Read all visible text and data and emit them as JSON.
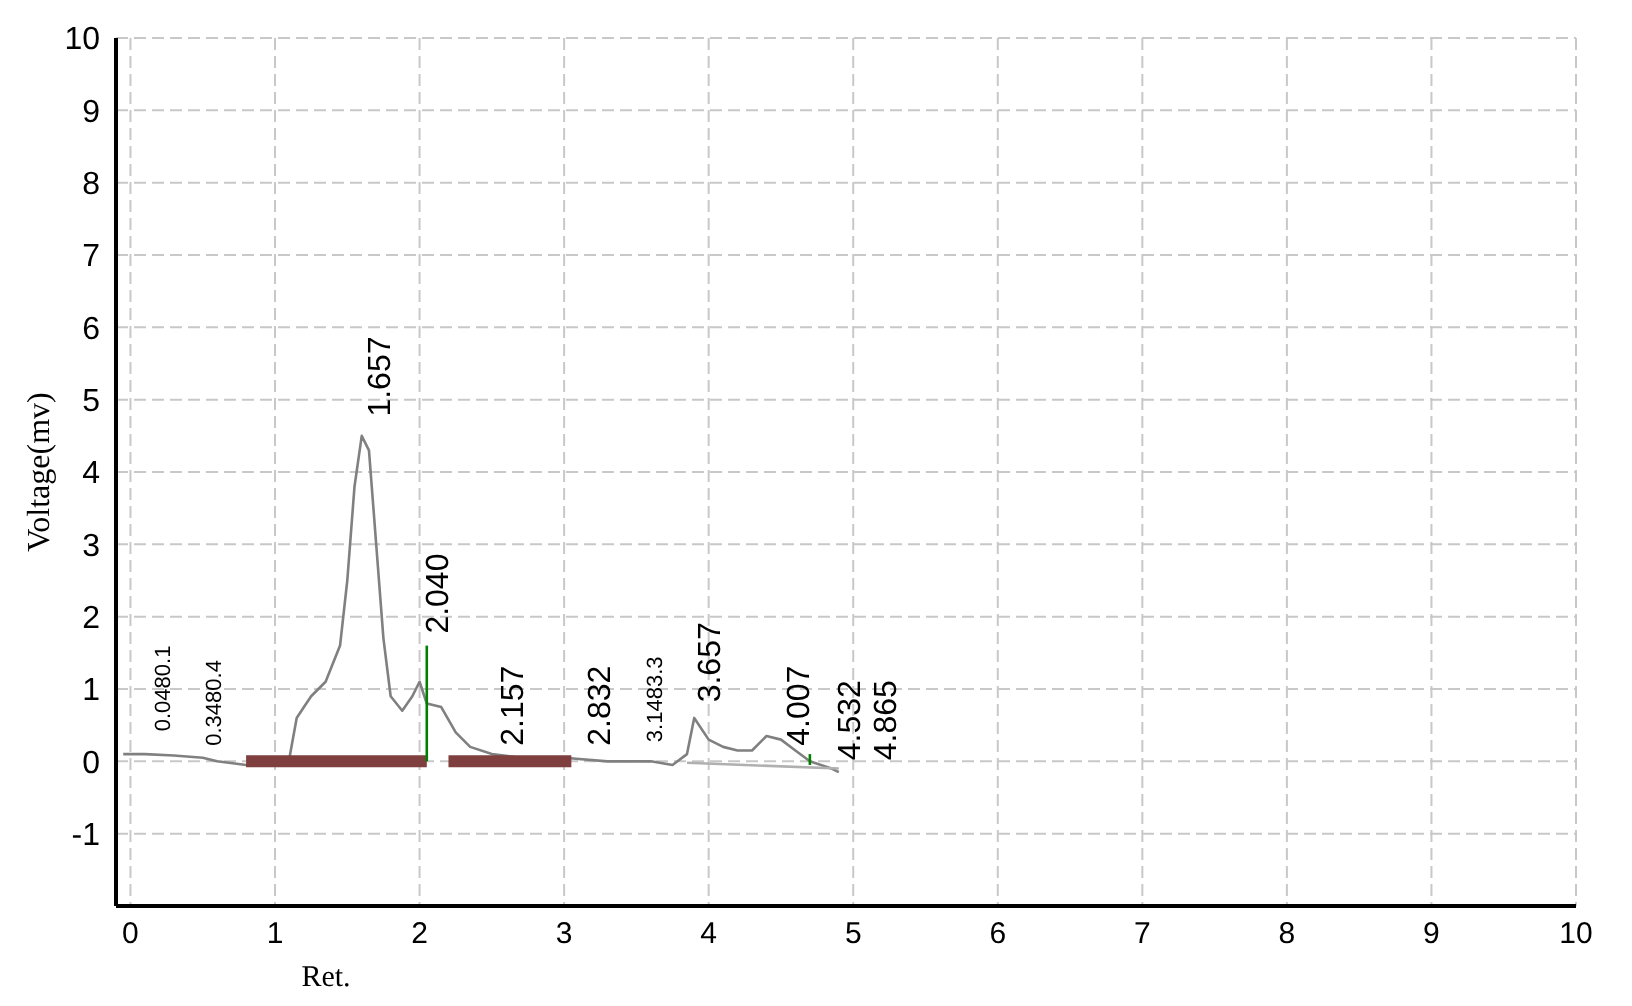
{
  "chart_data": {
    "type": "line",
    "xlabel": "Ret.",
    "ylabel": "Voltage(mv)",
    "xlim": [
      -0.1,
      10
    ],
    "ylim": [
      -2,
      10
    ],
    "xticks": [
      0,
      1,
      2,
      3,
      4,
      5,
      6,
      7,
      8,
      9,
      10
    ],
    "yticks": [
      -1,
      0,
      1,
      2,
      3,
      4,
      5,
      6,
      7,
      8,
      9,
      10
    ],
    "grid": true,
    "line_style": "solid",
    "marker": "none",
    "series": [
      {
        "color": "#808080",
        "x": [
          -0.05,
          0.1,
          0.3,
          0.5,
          0.6,
          0.8,
          1.0,
          1.1,
          1.15,
          1.2,
          1.25,
          1.35,
          1.45,
          1.5,
          1.55,
          1.6,
          1.65,
          1.7,
          1.75,
          1.8,
          1.88,
          1.95,
          2.0,
          2.05,
          2.15,
          2.25,
          2.35,
          2.5,
          2.7,
          3.0,
          3.3,
          3.6,
          3.75,
          3.85,
          3.9,
          4.0,
          4.1,
          4.2,
          4.3,
          4.4,
          4.5,
          4.6,
          4.7,
          4.85,
          4.9
        ],
        "values": [
          0.1,
          0.1,
          0.08,
          0.05,
          0.0,
          -0.05,
          -0.02,
          0.05,
          0.6,
          0.75,
          0.9,
          1.1,
          1.6,
          2.5,
          3.8,
          4.5,
          4.3,
          3.0,
          1.7,
          0.9,
          0.7,
          0.9,
          1.1,
          0.8,
          0.75,
          0.4,
          0.2,
          0.1,
          0.05,
          0.05,
          0.0,
          0.0,
          -0.05,
          0.1,
          0.6,
          0.3,
          0.2,
          0.15,
          0.15,
          0.35,
          0.3,
          0.15,
          0.0,
          -0.1,
          -0.15
        ]
      },
      {
        "color": "#b0b0b0",
        "x": [
          3.85,
          4.9
        ],
        "values": [
          -0.02,
          -0.1
        ]
      },
      {
        "color": "#7f3f3f",
        "x": [
          0.8,
          2.05
        ],
        "values": [
          0,
          0
        ]
      },
      {
        "color": "#7f3f3f",
        "x": [
          2.2,
          3.05
        ],
        "values": [
          0,
          0
        ]
      },
      {
        "color": "#008000",
        "x": [
          2.05,
          2.05
        ],
        "values": [
          0,
          1.6
        ]
      },
      {
        "color": "#008000",
        "x": [
          4.7,
          4.7
        ],
        "values": [
          -0.05,
          0.1
        ]
      }
    ],
    "annotations": [
      {
        "text": "0.0480.1",
        "x": 0.15,
        "y": 0.25
      },
      {
        "text": "0.3480.4",
        "x": 0.5,
        "y": 0.05
      },
      {
        "text": "1.657",
        "x": 1.65,
        "y": 4.6
      },
      {
        "text": "2.040",
        "x": 2.05,
        "y": 1.6
      },
      {
        "text": "2.157",
        "x": 2.57,
        "y": 0.05
      },
      {
        "text": "2.832",
        "x": 3.17,
        "y": 0.05
      },
      {
        "text": "3.1483.3",
        "x": 3.55,
        "y": 0.1
      },
      {
        "text": "3.657",
        "x": 3.93,
        "y": 0.65
      },
      {
        "text": "4.007",
        "x": 4.55,
        "y": 0.05
      },
      {
        "text": "4.532",
        "x": 4.9,
        "y": -0.15
      },
      "4.865"
    ]
  }
}
